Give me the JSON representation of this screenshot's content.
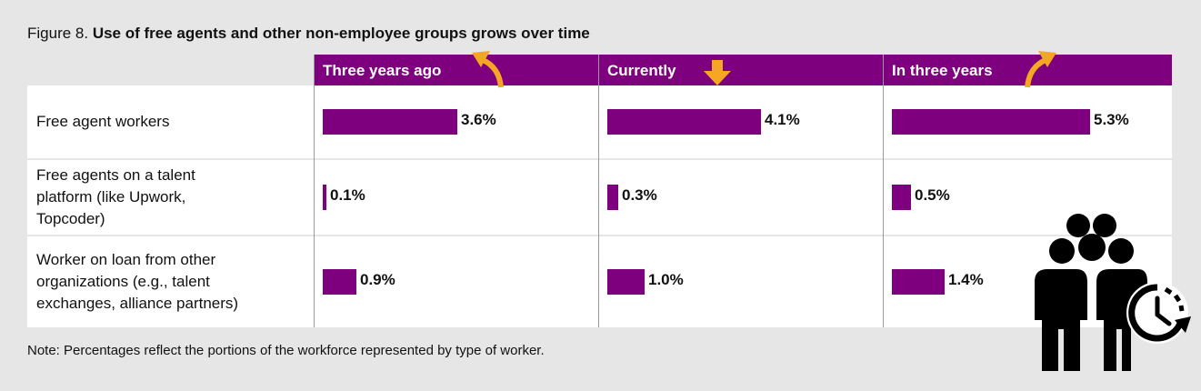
{
  "title": {
    "prefix": "Figure 8.",
    "main": "Use of free agents and other non-employee groups grows over time"
  },
  "note": "Note: Percentages reflect the portions of the workforce represented by type of worker.",
  "colors": {
    "header_bg": "#7f007f",
    "bar": "#7f007f",
    "arrow": "#f5a623",
    "background": "#e6e6e6"
  },
  "icons": [
    "arrow-curved-up-left-icon",
    "arrow-down-icon",
    "arrow-curved-up-right-icon",
    "people-clock-icon"
  ],
  "chart_data": {
    "type": "bar",
    "title": "Use of free agents and other non-employee groups grows over time",
    "categories": [
      "Free agent workers",
      "Free agents on a talent platform (like Upwork, Topcoder)",
      "Worker on loan from other organizations (e.g., talent exchanges, alliance partners)"
    ],
    "category_lines": [
      [
        "Free agent workers"
      ],
      [
        "Free agents on a talent",
        "platform (like Upwork,",
        "Topcoder)"
      ],
      [
        "Worker on loan from other",
        "organizations (e.g., talent",
        "exchanges, alliance partners)"
      ]
    ],
    "series": [
      {
        "name": "Three years ago",
        "values": [
          3.6,
          0.1,
          0.9
        ],
        "labels": [
          "3.6%",
          "0.1%",
          "0.9%"
        ]
      },
      {
        "name": "Currently",
        "values": [
          4.1,
          0.3,
          1.0
        ],
        "labels": [
          "4.1%",
          "0.3%",
          "1.0%"
        ]
      },
      {
        "name": "In three years",
        "values": [
          5.3,
          0.5,
          1.4
        ],
        "labels": [
          "5.3%",
          "0.5%",
          "1.4%"
        ]
      }
    ],
    "unit": "%",
    "ylim": [
      0,
      6
    ]
  }
}
